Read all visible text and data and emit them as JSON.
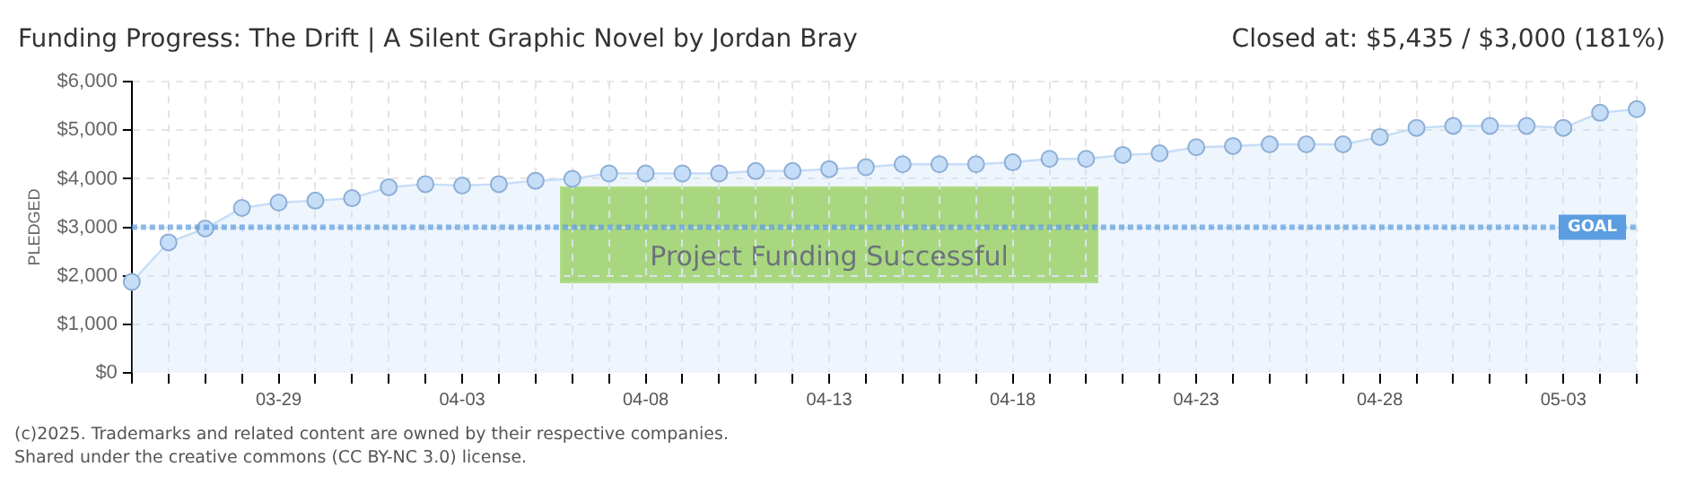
{
  "chart_data": {
    "type": "area",
    "title": "Funding Progress: The Drift | A Silent Graphic Novel by Jordan Bray",
    "subtitle": "Closed at:  $5,435 /  $3,000 (181%)",
    "ylabel": "PLEDGED",
    "categories": [
      null,
      null,
      null,
      null,
      "03-29",
      null,
      null,
      null,
      null,
      "04-03",
      null,
      null,
      null,
      null,
      "04-08",
      null,
      null,
      null,
      null,
      "04-13",
      null,
      null,
      null,
      null,
      "04-18",
      null,
      null,
      null,
      null,
      "04-23",
      null,
      null,
      null,
      null,
      "04-28",
      null,
      null,
      null,
      null,
      "05-03",
      null,
      null
    ],
    "series": [
      {
        "color": "#c5ddf7",
        "values": [
          1875,
          2690,
          2975,
          3400,
          3510,
          3550,
          3600,
          3825,
          3890,
          3860,
          3890,
          3960,
          4000,
          4110,
          4110,
          4110,
          4110,
          4160,
          4160,
          4200,
          4240,
          4300,
          4300,
          4300,
          4340,
          4410,
          4410,
          4490,
          4525,
          4650,
          4675,
          4710,
          4710,
          4710,
          4860,
          5050,
          5090,
          5090,
          5090,
          5050,
          5360,
          5435
        ]
      }
    ],
    "ylim": [
      0,
      6000
    ],
    "yticks": [
      {
        "value": 0,
        "label": "$0"
      },
      {
        "value": 1000,
        "label": "$1,000"
      },
      {
        "value": 2000,
        "label": "$2,000"
      },
      {
        "value": 3000,
        "label": "$3,000"
      },
      {
        "value": 4000,
        "label": "$4,000"
      },
      {
        "value": 5000,
        "label": "$5,000"
      },
      {
        "value": 6000,
        "label": "$6,000"
      }
    ],
    "ref_lines": [
      {
        "axis": "y",
        "value": 3000,
        "label": "GOAL",
        "color": "#5b9de0",
        "line_style": "dotted"
      }
    ],
    "annotations": [
      "Project Funding Successful",
      "(c)2025. Trademarks and related content are owned by their respective companies.",
      "Shared under the creative commons (CC BY-NC 3.0) license."
    ],
    "grid": true,
    "marker": "circle",
    "legend": false
  }
}
